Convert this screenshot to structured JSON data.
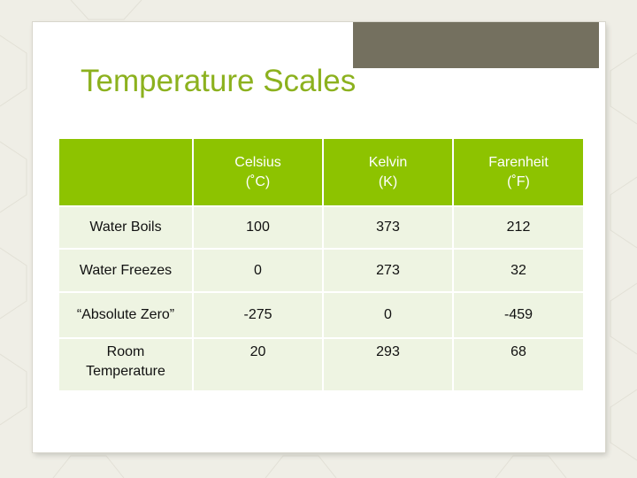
{
  "slide": {
    "title": "Temperature Scales"
  },
  "table": {
    "headers": [
      {
        "name": "",
        "unit": ""
      },
      {
        "name": "Celsius",
        "unit": "(˚C)"
      },
      {
        "name": "Kelvin",
        "unit": "(K)"
      },
      {
        "name": "Farenheit",
        "unit": "(˚F)"
      }
    ],
    "rows": [
      {
        "label": "Water Boils",
        "celsius": "100",
        "kelvin": "373",
        "fahrenheit": "212"
      },
      {
        "label": "Water Freezes",
        "celsius": "0",
        "kelvin": "273",
        "fahrenheit": "32"
      },
      {
        "label": "“Absolute Zero”",
        "celsius": "-275",
        "kelvin": "0",
        "fahrenheit": "-459"
      },
      {
        "label_line1": "Room",
        "label_line2": "Temperature",
        "celsius": "20",
        "kelvin": "293",
        "fahrenheit": "68"
      }
    ]
  },
  "colors": {
    "title": "#8cb11e",
    "header_bg": "#8dc300",
    "row_bg": "#eef4e2",
    "accent_box": "#74705f"
  }
}
